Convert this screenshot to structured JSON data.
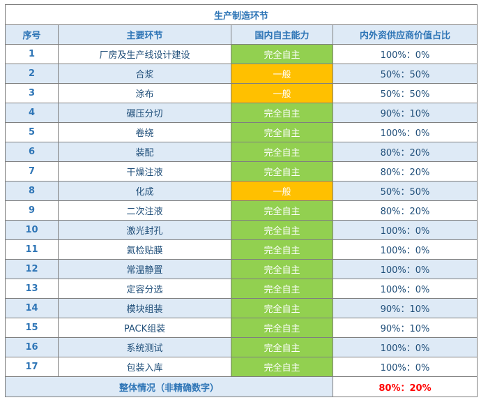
{
  "table": {
    "title": "生产制造环节",
    "headers": [
      "序号",
      "主要环节",
      "国内自主能力",
      "内外资供应商价值占比"
    ],
    "rows": [
      {
        "no": "1",
        "step": "厂房及生产线设计建设",
        "ability": "完全自主",
        "ratio": "100%：0%",
        "level": "green"
      },
      {
        "no": "2",
        "step": "合浆",
        "ability": "一般",
        "ratio": "50%：50%",
        "level": "orange"
      },
      {
        "no": "3",
        "step": "涂布",
        "ability": "一般",
        "ratio": "50%：50%",
        "level": "orange"
      },
      {
        "no": "4",
        "step": "碾压分切",
        "ability": "完全自主",
        "ratio": "90%：10%",
        "level": "green"
      },
      {
        "no": "5",
        "step": "卷绕",
        "ability": "完全自主",
        "ratio": "100%：0%",
        "level": "green"
      },
      {
        "no": "6",
        "step": "装配",
        "ability": "完全自主",
        "ratio": "80%：20%",
        "level": "green"
      },
      {
        "no": "7",
        "step": "干燥注液",
        "ability": "完全自主",
        "ratio": "80%：20%",
        "level": "green"
      },
      {
        "no": "8",
        "step": "化成",
        "ability": "一般",
        "ratio": "50%：50%",
        "level": "orange"
      },
      {
        "no": "9",
        "step": "二次注液",
        "ability": "完全自主",
        "ratio": "80%：20%",
        "level": "green"
      },
      {
        "no": "10",
        "step": "激光封孔",
        "ability": "完全自主",
        "ratio": "100%：0%",
        "level": "green"
      },
      {
        "no": "11",
        "step": "氦检贴膜",
        "ability": "完全自主",
        "ratio": "100%：0%",
        "level": "green"
      },
      {
        "no": "12",
        "step": "常温静置",
        "ability": "完全自主",
        "ratio": "100%：0%",
        "level": "green"
      },
      {
        "no": "13",
        "step": "定容分选",
        "ability": "完全自主",
        "ratio": "100%：0%",
        "level": "green"
      },
      {
        "no": "14",
        "step": "模块组装",
        "ability": "完全自主",
        "ratio": "90%：10%",
        "level": "green"
      },
      {
        "no": "15",
        "step": "PACK组装",
        "ability": "完全自主",
        "ratio": "90%：10%",
        "level": "green"
      },
      {
        "no": "16",
        "step": "系统测试",
        "ability": "完全自主",
        "ratio": "100%：0%",
        "level": "green"
      },
      {
        "no": "17",
        "step": "包装入库",
        "ability": "完全自主",
        "ratio": "100%：0%",
        "level": "green"
      }
    ],
    "total_label": "整体情况（非精确数字）",
    "total_value": "80%：20%"
  },
  "colors": {
    "header_text": "#2e75b6",
    "body_text": "#1f4e79",
    "band": "#deeaf6",
    "green": "#92d050",
    "orange": "#ffc000",
    "total_value": "#ff0000"
  }
}
